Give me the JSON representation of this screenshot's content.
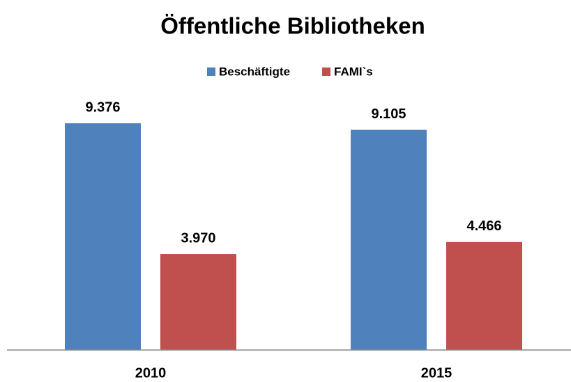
{
  "chart_data": {
    "type": "bar",
    "title": "Öffentliche Bibliotheken",
    "categories": [
      "2010",
      "2015"
    ],
    "series": [
      {
        "name": "Beschäftigte",
        "color": "#4f81bd",
        "values": [
          9376,
          9105
        ],
        "value_labels": [
          "9.376",
          "9.105"
        ]
      },
      {
        "name": "FAMI`s",
        "color": "#c0504d",
        "values": [
          3970,
          4466
        ],
        "value_labels": [
          "3.970",
          "4.466"
        ]
      }
    ],
    "ylim": [
      0,
      12000
    ],
    "legend": "top"
  }
}
